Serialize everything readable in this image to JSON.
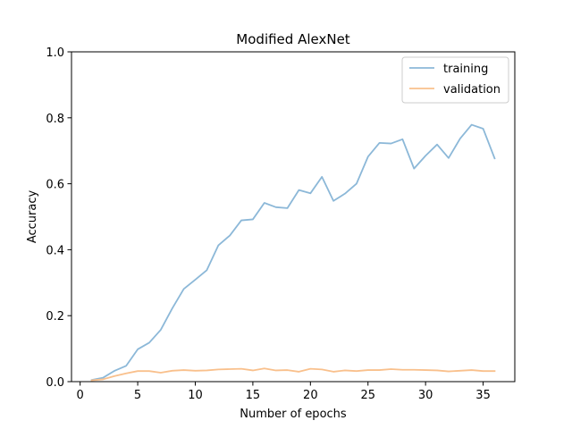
{
  "chart_data": {
    "type": "line",
    "title": "Modified AlexNet",
    "xlabel": "Number of epochs",
    "ylabel": "Accuracy",
    "xlim": [
      -0.75,
      37.75
    ],
    "ylim": [
      0,
      1
    ],
    "x_ticks": [
      0,
      5,
      10,
      15,
      20,
      25,
      30,
      35
    ],
    "x_tick_labels": [
      "0",
      "5",
      "10",
      "15",
      "20",
      "25",
      "30",
      "35"
    ],
    "y_ticks": [
      0,
      0.2,
      0.4,
      0.6,
      0.8,
      1.0
    ],
    "y_tick_labels": [
      "0.0",
      "0.2",
      "0.4",
      "0.6",
      "0.8",
      "1.0"
    ],
    "grid": false,
    "legend_position": "top-right",
    "x": [
      1,
      2,
      3,
      4,
      5,
      6,
      7,
      8,
      9,
      10,
      11,
      12,
      13,
      14,
      15,
      16,
      17,
      18,
      19,
      20,
      21,
      22,
      23,
      24,
      25,
      26,
      27,
      28,
      29,
      30,
      31,
      32,
      33,
      34,
      35,
      36
    ],
    "series": [
      {
        "name": "training",
        "color": "#8cb8d8",
        "values": [
          0.005,
          0.012,
          0.033,
          0.048,
          0.098,
          0.118,
          0.157,
          0.222,
          0.281,
          0.309,
          0.338,
          0.413,
          0.443,
          0.489,
          0.492,
          0.542,
          0.529,
          0.526,
          0.581,
          0.571,
          0.621,
          0.548,
          0.57,
          0.6,
          0.682,
          0.724,
          0.722,
          0.735,
          0.646,
          0.685,
          0.719,
          0.678,
          0.737,
          0.779,
          0.767,
          0.677
        ]
      },
      {
        "name": "validation",
        "color": "#f9c08c",
        "values": [
          0.004,
          0.007,
          0.017,
          0.025,
          0.032,
          0.032,
          0.027,
          0.033,
          0.035,
          0.033,
          0.034,
          0.037,
          0.038,
          0.039,
          0.034,
          0.04,
          0.034,
          0.035,
          0.03,
          0.039,
          0.037,
          0.03,
          0.034,
          0.032,
          0.035,
          0.035,
          0.038,
          0.036,
          0.036,
          0.035,
          0.034,
          0.031,
          0.033,
          0.035,
          0.032,
          0.032
        ]
      }
    ]
  }
}
